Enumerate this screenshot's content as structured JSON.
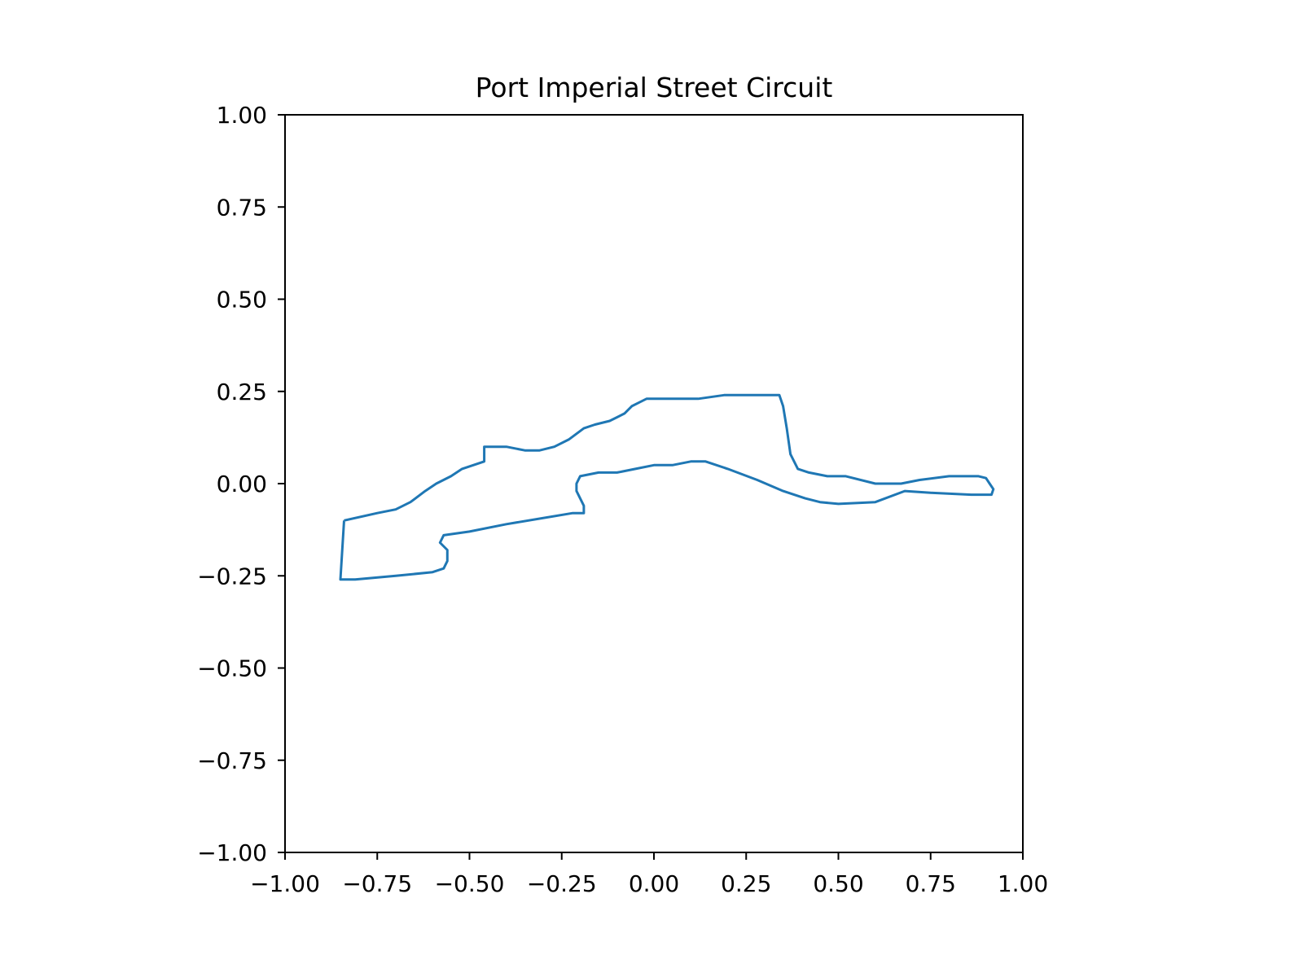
{
  "chart_data": {
    "type": "line",
    "title": "Port Imperial Street Circuit",
    "xlabel": "",
    "ylabel": "",
    "xlim": [
      -1.0,
      1.0
    ],
    "ylim": [
      -1.0,
      1.0
    ],
    "grid": false,
    "legend": "none",
    "x_ticks": [
      "−1.00",
      "−0.75",
      "−0.50",
      "−0.25",
      "0.00",
      "0.25",
      "0.50",
      "0.75",
      "1.00"
    ],
    "y_ticks": [
      "1.00",
      "0.75",
      "0.50",
      "0.25",
      "0.00",
      "−0.25",
      "−0.50",
      "−0.75",
      "−1.00"
    ],
    "x_tick_values": [
      -1.0,
      -0.75,
      -0.5,
      -0.25,
      0.0,
      0.25,
      0.5,
      0.75,
      1.0
    ],
    "y_tick_values": [
      1.0,
      0.75,
      0.5,
      0.25,
      0.0,
      -0.25,
      -0.5,
      -0.75,
      -1.0
    ],
    "line_color": "#1f77b4",
    "series": [
      {
        "x": [
          -0.84,
          -0.75,
          -0.7,
          -0.66,
          -0.62,
          -0.59,
          -0.55,
          -0.52,
          -0.46,
          -0.46,
          -0.4,
          -0.35,
          -0.31,
          -0.27,
          -0.23,
          -0.19,
          -0.16,
          -0.12,
          -0.1,
          -0.08,
          -0.06,
          -0.04,
          -0.02,
          0.0,
          0.02,
          0.06,
          0.12,
          0.19,
          0.26,
          0.31,
          0.34,
          0.35,
          0.36,
          0.37,
          0.39,
          0.42,
          0.47,
          0.52,
          0.6,
          0.67,
          0.72,
          0.8,
          0.88,
          0.9,
          0.91,
          0.92,
          0.915,
          0.89,
          0.86,
          0.75,
          0.68,
          0.6,
          0.5,
          0.45,
          0.41,
          0.35,
          0.28,
          0.2,
          0.14,
          0.1,
          0.05,
          0.0,
          -0.05,
          -0.1,
          -0.15,
          -0.2,
          -0.21,
          -0.21,
          -0.19,
          -0.19,
          -0.22,
          -0.4,
          -0.5,
          -0.57,
          -0.58,
          -0.56,
          -0.56,
          -0.57,
          -0.6,
          -0.7,
          -0.81,
          -0.85,
          -0.84
        ],
        "y": [
          -0.1,
          -0.08,
          -0.07,
          -0.05,
          -0.02,
          0.0,
          0.02,
          0.04,
          0.06,
          0.1,
          0.1,
          0.09,
          0.09,
          0.1,
          0.12,
          0.15,
          0.16,
          0.17,
          0.18,
          0.19,
          0.21,
          0.22,
          0.23,
          0.23,
          0.23,
          0.23,
          0.23,
          0.24,
          0.24,
          0.24,
          0.24,
          0.21,
          0.15,
          0.08,
          0.04,
          0.03,
          0.02,
          0.02,
          0.0,
          0.0,
          0.01,
          0.02,
          0.02,
          0.015,
          0.0,
          -0.015,
          -0.03,
          -0.03,
          -0.03,
          -0.025,
          -0.02,
          -0.05,
          -0.055,
          -0.05,
          -0.04,
          -0.02,
          0.01,
          0.04,
          0.06,
          0.06,
          0.05,
          0.05,
          0.04,
          0.03,
          0.03,
          0.02,
          0.0,
          -0.02,
          -0.06,
          -0.08,
          -0.08,
          -0.11,
          -0.13,
          -0.14,
          -0.16,
          -0.18,
          -0.21,
          -0.23,
          -0.24,
          -0.25,
          -0.26,
          -0.26,
          -0.1
        ]
      }
    ]
  }
}
